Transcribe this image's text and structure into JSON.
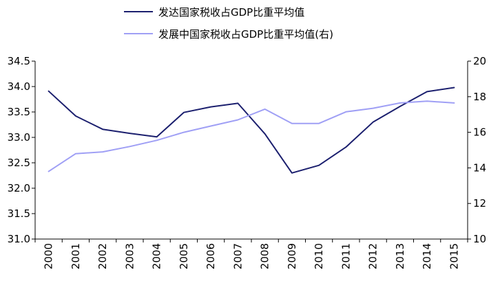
{
  "chart_data": {
    "type": "line",
    "title": "",
    "categories": [
      "2000",
      "2001",
      "2002",
      "2003",
      "2004",
      "2005",
      "2006",
      "2007",
      "2008",
      "2009",
      "2010",
      "2011",
      "2012",
      "2013",
      "2014",
      "2015"
    ],
    "series": [
      {
        "name": "发达国家税收占GDP比重平均值",
        "axis": "left",
        "color": "#1b1f6e",
        "values": [
          33.91,
          33.42,
          33.16,
          33.08,
          33.01,
          33.49,
          33.6,
          33.67,
          33.07,
          32.3,
          32.45,
          32.81,
          33.3,
          33.61,
          33.9,
          33.98
        ]
      },
      {
        "name": "发展中国家税收占GDP比重平均值(右)",
        "axis": "right",
        "color": "#9f9ff5",
        "values": [
          13.8,
          14.8,
          14.9,
          15.2,
          15.55,
          16.0,
          16.35,
          16.7,
          17.3,
          16.5,
          16.5,
          17.15,
          17.35,
          17.65,
          17.75,
          17.65
        ]
      }
    ],
    "y_left": {
      "min": 31.0,
      "max": 34.5,
      "ticks": [
        "31.0",
        "31.5",
        "32.0",
        "32.5",
        "33.0",
        "33.5",
        "34.0",
        "34.5"
      ]
    },
    "y_right": {
      "min": 10,
      "max": 20,
      "ticks": [
        "10",
        "12",
        "14",
        "16",
        "18",
        "20"
      ]
    },
    "grid": false,
    "legend_position": "top-center"
  }
}
